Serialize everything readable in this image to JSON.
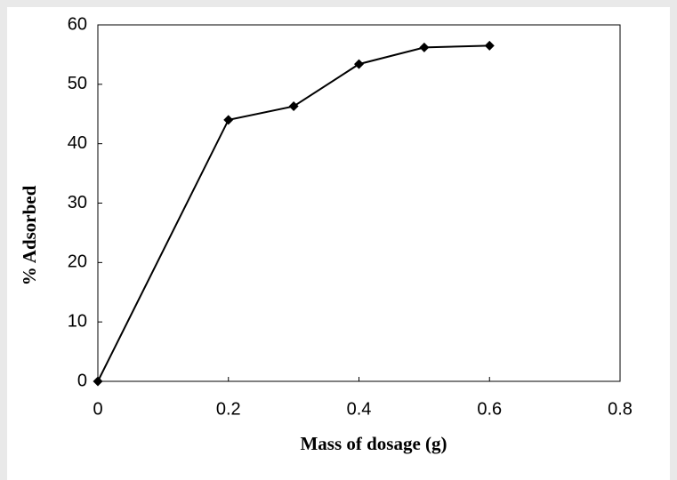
{
  "chart_data": {
    "type": "line",
    "x_label": "Mass of dosage (g)",
    "y_label": "% Adsorbed",
    "x": [
      0,
      0.2,
      0.3,
      0.4,
      0.5,
      0.6
    ],
    "series": [
      {
        "color": "#000000",
        "values": [
          0,
          44,
          46.3,
          53.4,
          56.2,
          56.5
        ]
      }
    ],
    "xlim": [
      0,
      0.8
    ],
    "xticks": [
      0,
      0.2,
      0.4,
      0.6,
      0.8
    ],
    "ylim": [
      0,
      60
    ],
    "yticks": [
      0,
      10,
      20,
      30,
      40,
      50,
      60
    ],
    "grid": false
  }
}
